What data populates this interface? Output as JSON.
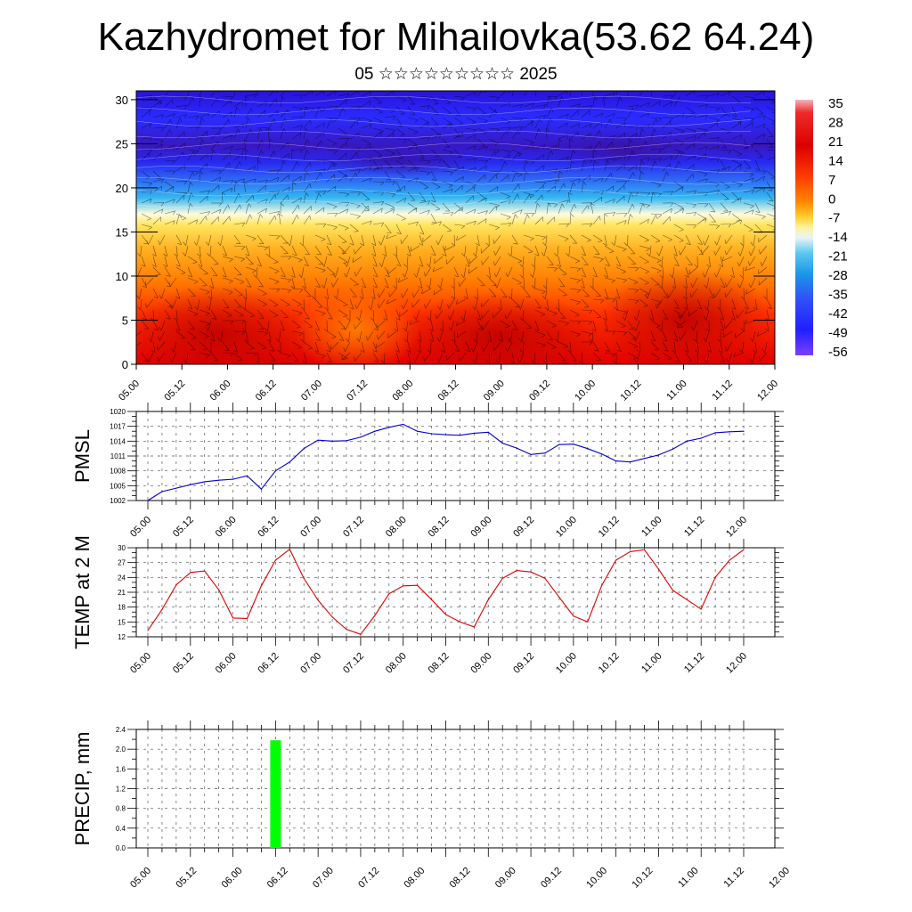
{
  "title": "Kazhydromet for Mihailovka(53.62 64.24)",
  "subtitle": "05 ☆☆☆☆☆☆☆☆☆ 2025",
  "chart_data": [
    {
      "type": "heatmap",
      "xlabel": "",
      "ylabel": "",
      "x_ticks": [
        "05.00",
        "05.12",
        "06.00",
        "06.12",
        "07.00",
        "07.12",
        "08.00",
        "08.12",
        "09.00",
        "09.12",
        "10.00",
        "10.12",
        "11.00",
        "11.12",
        "12.00"
      ],
      "y_ticks": [
        0,
        5,
        10,
        15,
        20,
        25,
        30
      ],
      "ylim": [
        0,
        31
      ],
      "colorbar_labels": [
        "35",
        "28",
        "21",
        "14",
        "7",
        "0",
        "-7",
        "-14",
        "-21",
        "-28",
        "-35",
        "-42",
        "-49",
        "-56"
      ],
      "colors": {
        "warm": "#e40000",
        "hot": "#c80000",
        "orange": "#ff8c00",
        "yellow": "#ffee55",
        "pale": "#fffbd0",
        "cyan": "#2ab4f0",
        "blue": "#2020ff",
        "deep": "#2400cc",
        "violet": "#6a33ff"
      }
    },
    {
      "type": "line",
      "ylabel": "PMSL",
      "ylim": [
        1002,
        1020
      ],
      "y_ticks": [
        1002,
        1005,
        1008,
        1011,
        1014,
        1017,
        1020
      ],
      "x_ticks": [
        "05.00",
        "05.12",
        "06.00",
        "06.12",
        "07.00",
        "07.12",
        "08.00",
        "08.12",
        "09.00",
        "09.12",
        "10.00",
        "10.12",
        "11.00",
        "11.12",
        "12.00"
      ],
      "line_color": "#0000cc",
      "x": [
        0,
        0.1667,
        0.3333,
        0.5,
        0.6667,
        0.8333,
        1,
        1.1667,
        1.3333,
        1.5,
        1.6667,
        1.8333,
        2,
        2.1667,
        2.3333,
        2.5,
        2.6667,
        2.8333,
        3,
        3.1667,
        3.3333,
        3.5,
        3.6667,
        3.8333,
        4,
        4.1667,
        4.3333,
        4.5,
        4.6667,
        4.8333,
        5,
        5.1667,
        5.3333,
        5.5,
        5.6667,
        5.8333,
        6,
        6.1667,
        6.3333,
        6.5,
        6.6667,
        6.8333,
        7
      ],
      "y": [
        1002.0,
        1003.8,
        1004.5,
        1005.2,
        1005.8,
        1006.1,
        1006.3,
        1007.0,
        1004.3,
        1008.0,
        1009.8,
        1012.5,
        1014.2,
        1014.0,
        1014.1,
        1014.8,
        1016.0,
        1016.8,
        1017.4,
        1016.0,
        1015.5,
        1015.3,
        1015.2,
        1015.6,
        1015.8,
        1013.6,
        1012.6,
        1011.3,
        1011.6,
        1013.3,
        1013.4,
        1012.5,
        1011.4,
        1010.0,
        1009.8,
        1010.5,
        1011.2,
        1012.4,
        1014.0,
        1014.6,
        1015.7,
        1015.9,
        1016.0
      ]
    },
    {
      "type": "line",
      "ylabel": "TEMP at 2 M",
      "ylim": [
        12,
        30
      ],
      "y_ticks": [
        12,
        15,
        18,
        21,
        24,
        27,
        30
      ],
      "x_ticks": [
        "05.00",
        "05.12",
        "06.00",
        "06.12",
        "07.00",
        "07.12",
        "08.00",
        "08.12",
        "09.00",
        "09.12",
        "10.00",
        "10.12",
        "11.00",
        "11.12",
        "12.00"
      ],
      "line_color": "#dd0000",
      "x": [
        0,
        0.1667,
        0.3333,
        0.5,
        0.6667,
        0.8333,
        1,
        1.1667,
        1.3333,
        1.5,
        1.6667,
        1.8333,
        2,
        2.1667,
        2.3333,
        2.5,
        2.6667,
        2.8333,
        3,
        3.1667,
        3.3333,
        3.5,
        3.6667,
        3.8333,
        4,
        4.1667,
        4.3333,
        4.5,
        4.6667,
        4.8333,
        5,
        5.1667,
        5.3333,
        5.5,
        5.6667,
        5.8333,
        6,
        6.1667,
        6.3333,
        6.5,
        6.6667,
        6.8333,
        7
      ],
      "y": [
        13.3,
        17.5,
        22.5,
        25.0,
        25.3,
        21.5,
        15.8,
        15.7,
        22.3,
        27.5,
        29.7,
        23.8,
        19.4,
        16.0,
        13.5,
        12.5,
        16.3,
        20.7,
        22.3,
        22.4,
        19.5,
        16.5,
        15.0,
        14.0,
        19.5,
        23.8,
        25.4,
        25.1,
        23.8,
        20.0,
        16.2,
        15.0,
        22.4,
        27.5,
        29.2,
        29.6,
        25.7,
        21.4,
        19.5,
        17.6,
        24.0,
        27.5,
        29.6
      ]
    },
    {
      "type": "bar",
      "ylabel": "PRECIP, mm",
      "ylim": [
        0,
        2.4
      ],
      "y_ticks": [
        "0.0",
        "0.4",
        "0.8",
        "1.2",
        "1.6",
        "2.0",
        "2.4"
      ],
      "x_ticks": [
        "05.00",
        "05.12",
        "06.00",
        "06.12",
        "07.00",
        "07.12",
        "08.00",
        "08.12",
        "09.00",
        "09.12",
        "10.00",
        "10.12",
        "11.00",
        "11.12",
        "12.00"
      ],
      "bar_color": "#00ff00",
      "x": [
        1.5
      ],
      "values": [
        2.18
      ]
    }
  ]
}
